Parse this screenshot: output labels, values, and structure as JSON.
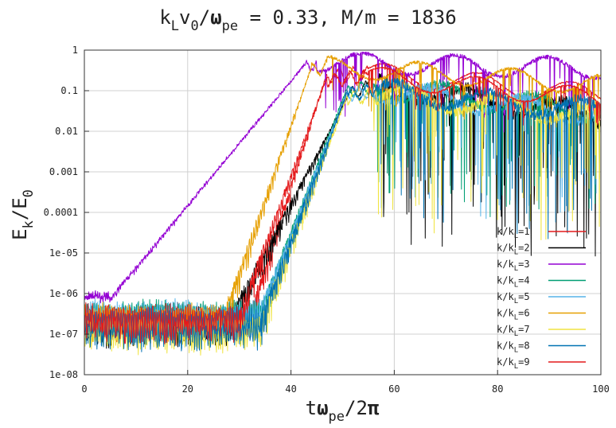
{
  "chart_data": {
    "type": "line",
    "title_parts": {
      "k": "k",
      "L": "L",
      "v": "v",
      "zero": "0",
      "slash": "/",
      "omega": "ω",
      "pe": "pe",
      "rest": " = 0.33, M/m = 1836"
    },
    "xlabel_parts": {
      "t": "t",
      "omega": "ω",
      "pe": "pe",
      "rest": "/2",
      "pi": "π"
    },
    "ylabel_parts": {
      "E": "E",
      "k": "k",
      "slash": "/E",
      "zero": "0"
    },
    "xlim": [
      0,
      100
    ],
    "ylim_log10": [
      -8,
      0
    ],
    "y_scale": "log",
    "grid": true,
    "legend_placement": "bottom-right",
    "x_ticks": [
      {
        "value": 0,
        "label": "0"
      },
      {
        "value": 20,
        "label": "20"
      },
      {
        "value": 40,
        "label": "40"
      },
      {
        "value": 60,
        "label": "60"
      },
      {
        "value": 80,
        "label": "80"
      },
      {
        "value": 100,
        "label": "100"
      }
    ],
    "y_ticks": [
      {
        "exp": 0,
        "label": "1"
      },
      {
        "exp": -1,
        "label": "0.1"
      },
      {
        "exp": -2,
        "label": "0.01"
      },
      {
        "exp": -3,
        "label": "0.001"
      },
      {
        "exp": -4,
        "label": "0.0001"
      },
      {
        "exp": -5,
        "label": "1e-05"
      },
      {
        "exp": -6,
        "label": "1e-06"
      },
      {
        "exp": -7,
        "label": "1e-07"
      },
      {
        "exp": -8,
        "label": "1e-08"
      }
    ],
    "series": [
      {
        "label_main": "k/k",
        "label_sub": "L",
        "label_rest": "=1",
        "color": "#e41a1c",
        "base": -6.4,
        "amp": 0.9,
        "growth_start": 32,
        "growth_end": 47,
        "plateau_start": 55,
        "peak": -0.55,
        "late": -1.1,
        "late_wob": 0.12
      },
      {
        "label_main": "k/k",
        "label_sub": "L",
        "label_rest": "=2",
        "color": "#000000",
        "base": -6.5,
        "amp": 0.9,
        "growth_start": 28,
        "growth_end": 52,
        "plateau_start": 57,
        "peak": -0.9,
        "late": -1.6,
        "late_wob": 0.9
      },
      {
        "label_main": "k/k",
        "label_sub": "L",
        "label_rest": "=3",
        "color": "#9400d3",
        "base": -6.1,
        "amp": 0.15,
        "growth_start": 5,
        "growth_end": 43,
        "plateau_start": 45,
        "peak": -0.3,
        "late": -0.45,
        "late_wob": 0.35
      },
      {
        "label_main": "k/k",
        "label_sub": "L",
        "label_rest": "=4",
        "color": "#009e73",
        "base": -6.3,
        "amp": 0.9,
        "growth_start": 34,
        "growth_end": 51,
        "plateau_start": 56,
        "peak": -0.9,
        "late": -1.5,
        "late_wob": 0.7
      },
      {
        "label_main": "k/k",
        "label_sub": "L",
        "label_rest": "=5",
        "color": "#56b4e9",
        "base": -6.3,
        "amp": 0.9,
        "growth_start": 34,
        "growth_end": 51,
        "plateau_start": 56,
        "peak": -1.0,
        "late": -1.6,
        "late_wob": 0.7
      },
      {
        "label_main": "k/k",
        "label_sub": "L",
        "label_rest": "=6",
        "color": "#e69f00",
        "base": -6.4,
        "amp": 0.9,
        "growth_start": 27,
        "growth_end": 44,
        "plateau_start": 47,
        "peak": -0.4,
        "late": -0.85,
        "late_wob": 0.25
      },
      {
        "label_main": "k/k",
        "label_sub": "L",
        "label_rest": "=7",
        "color": "#f0e442",
        "base": -6.6,
        "amp": 1.0,
        "growth_start": 34,
        "growth_end": 51,
        "plateau_start": 56,
        "peak": -1.1,
        "late": -1.6,
        "late_wob": 0.8
      },
      {
        "label_main": "k/k",
        "label_sub": "L",
        "label_rest": "=8",
        "color": "#0072b2",
        "base": -6.5,
        "amp": 1.0,
        "growth_start": 34,
        "growth_end": 51,
        "plateau_start": 56,
        "peak": -1.0,
        "late": -1.5,
        "late_wob": 0.8
      },
      {
        "label_main": "k/k",
        "label_sub": "L",
        "label_rest": "=9",
        "color": "#e41a1c",
        "base": -6.4,
        "amp": 0.9,
        "growth_start": 30,
        "growth_end": 47,
        "plateau_start": 55,
        "peak": -0.65,
        "late": -1.2,
        "late_wob": 0.15
      }
    ]
  }
}
